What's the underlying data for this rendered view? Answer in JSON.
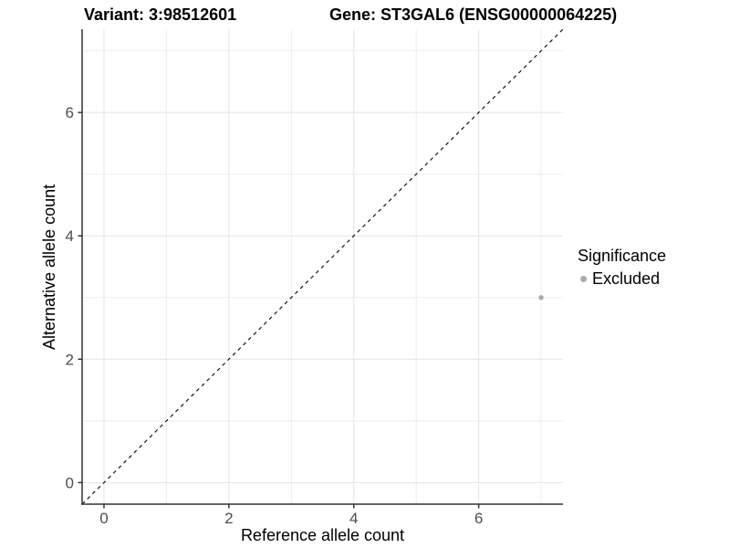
{
  "header": {
    "variant_label": "Variant: 3:98512601",
    "gene_label": "Gene: ST3GAL6 (ENSG00000064225)"
  },
  "chart_data": {
    "type": "scatter",
    "title": "Variant: 3:98512601   Gene: ST3GAL6 (ENSG00000064225)",
    "xlabel": "Reference allele count",
    "ylabel": "Alternative allele count",
    "xlim": [
      -0.35,
      7.35
    ],
    "ylim": [
      -0.35,
      7.35
    ],
    "x_major_ticks": [
      0,
      2,
      4,
      6
    ],
    "y_major_ticks": [
      0,
      2,
      4,
      6
    ],
    "x_minor_gridlines": [
      1,
      3,
      5,
      7
    ],
    "y_minor_gridlines": [
      1,
      3,
      5,
      7
    ],
    "grid": "major+minor",
    "identity_line": {
      "slope": 1,
      "intercept": 0,
      "style": "dashed",
      "color": "#000000"
    },
    "series": [
      {
        "name": "Excluded",
        "color": "#aaaaaa",
        "points": [
          [
            7,
            3
          ]
        ]
      }
    ],
    "legend": {
      "title": "Significance",
      "position": "right",
      "entries": [
        {
          "label": "Excluded",
          "color": "#aaaaaa"
        }
      ]
    },
    "style": {
      "panel_background": "#ffffff",
      "grid_major_color": "#e3e3e3",
      "grid_minor_color": "#ededed",
      "axis_line_color": "#333333",
      "tick_label_color": "#4d4d4d",
      "text_color": "#000000"
    }
  }
}
